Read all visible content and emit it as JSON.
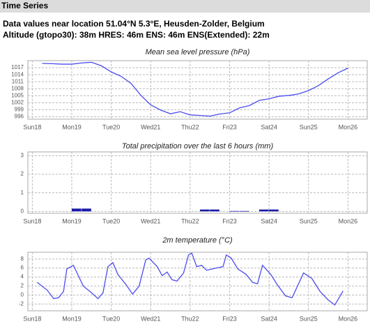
{
  "header": {
    "title": "Time Series",
    "location": "Data values near location 51.04°N 5.3°E, Heusden-Zolder, Belgium",
    "altitude": "Altitude (gtopo30): 38m HRES: 46m ENS: 46m ENS(Extended): 22m"
  },
  "chart_data": [
    {
      "type": "line",
      "title": "Mean sea level pressure (hPa)",
      "color": "#4b4bef",
      "grid": true,
      "xlim": [
        9.3,
        215.7
      ],
      "ylim": [
        995,
        1020
      ],
      "xticks": [
        {
          "value": 12,
          "label": "Sun18",
          "color": "#e8322d"
        },
        {
          "value": 36,
          "label": "Mon19",
          "color": "#555555"
        },
        {
          "value": 60,
          "label": "Tue20",
          "color": "#555555"
        },
        {
          "value": 84,
          "label": "Wed21",
          "color": "#555555"
        },
        {
          "value": 108,
          "label": "Thu22",
          "color": "#555555"
        },
        {
          "value": 132,
          "label": "Fri23",
          "color": "#555555"
        },
        {
          "value": 156,
          "label": "Sat24",
          "color": "#555555"
        },
        {
          "value": 180,
          "label": "Sun25",
          "color": "#e8322d"
        },
        {
          "value": 204,
          "label": "Mon26",
          "color": "#555555"
        }
      ],
      "yticks": [
        996,
        999,
        1002,
        1005,
        1008,
        1011,
        1014,
        1017
      ],
      "x": [
        18,
        24,
        30,
        36,
        42,
        48,
        54,
        60,
        66,
        72,
        78,
        84,
        90,
        96,
        102,
        108,
        114,
        120,
        126,
        132,
        138,
        144,
        150,
        156,
        162,
        168,
        174,
        180,
        186,
        192,
        198,
        204
      ],
      "values": [
        1018.8,
        1018.7,
        1018.5,
        1018.5,
        1019,
        1019.3,
        1017.8,
        1015.2,
        1013.3,
        1010.3,
        1005.2,
        1001.1,
        998.9,
        997.3,
        998.2,
        996.8,
        996.6,
        996.3,
        997.2,
        997.7,
        999.8,
        1000.8,
        1003,
        1003.7,
        1004.8,
        1005.1,
        1005.8,
        1007.2,
        1009.3,
        1012.2,
        1014.8,
        1016.8
      ]
    },
    {
      "type": "bar",
      "title": "Total precipitation over the last 6 hours (mm)",
      "color": "#1a1aa8",
      "grid": true,
      "bar_width": 6,
      "xlim": [
        9.3,
        215.7
      ],
      "ylim": [
        -0.1,
        3.2
      ],
      "xticks": [
        {
          "value": 12,
          "label": "Sun18",
          "color": "#e8322d"
        },
        {
          "value": 36,
          "label": "Mon19",
          "color": "#555555"
        },
        {
          "value": 60,
          "label": "Tue20",
          "color": "#555555"
        },
        {
          "value": 84,
          "label": "Wed21",
          "color": "#555555"
        },
        {
          "value": 108,
          "label": "Thu22",
          "color": "#555555"
        },
        {
          "value": 132,
          "label": "Fri23",
          "color": "#555555"
        },
        {
          "value": 156,
          "label": "Sat24",
          "color": "#555555"
        },
        {
          "value": 180,
          "label": "Sun25",
          "color": "#e8322d"
        },
        {
          "value": 204,
          "label": "Mon26",
          "color": "#555555"
        }
      ],
      "yticks": [
        0,
        1,
        2,
        3
      ],
      "x": [
        36,
        42,
        114,
        120,
        132,
        138,
        150,
        156
      ],
      "values": [
        0.15,
        0.15,
        0.1,
        0.1,
        0.02,
        0.02,
        0.1,
        0.1
      ]
    },
    {
      "type": "line",
      "title": "2m temperature (°C)",
      "color": "#4b4bef",
      "grid": true,
      "xlim": [
        9.3,
        215.7
      ],
      "ylim": [
        -3.5,
        9.5
      ],
      "xticks": [
        {
          "value": 12,
          "label": "Sun18",
          "color": "#e8322d"
        },
        {
          "value": 36,
          "label": "Mon19",
          "color": "#555555"
        },
        {
          "value": 60,
          "label": "Tue20",
          "color": "#555555"
        },
        {
          "value": 84,
          "label": "Wed21",
          "color": "#555555"
        },
        {
          "value": 108,
          "label": "Thu22",
          "color": "#555555"
        },
        {
          "value": 132,
          "label": "Fri23",
          "color": "#555555"
        },
        {
          "value": 156,
          "label": "Sat24",
          "color": "#555555"
        },
        {
          "value": 180,
          "label": "Sun25",
          "color": "#e8322d"
        },
        {
          "value": 204,
          "label": "Mon26",
          "color": "#555555"
        }
      ],
      "yticks": [
        -2,
        0,
        2,
        4,
        6,
        8
      ],
      "x": [
        15,
        21,
        25,
        28,
        31,
        33,
        37,
        40,
        43,
        48,
        52,
        55,
        58,
        61,
        64,
        69,
        73,
        77,
        81,
        83,
        88,
        91,
        94,
        97,
        100,
        104,
        107,
        109,
        112,
        115,
        118,
        124,
        128,
        130,
        133,
        137,
        142,
        146,
        149,
        152,
        157,
        161,
        166,
        170,
        177,
        182,
        187,
        192,
        196,
        201
      ],
      "values": [
        2.8,
        1.1,
        -0.8,
        -0.6,
        0.8,
        5.8,
        6.6,
        4.3,
        2.0,
        0.5,
        -0.8,
        0.5,
        6.3,
        7.2,
        4.6,
        2.3,
        0.2,
        2.0,
        7.8,
        8.2,
        6.3,
        4.3,
        5.1,
        3.4,
        3.1,
        4.9,
        8.9,
        9.3,
        6.3,
        6.6,
        5.5,
        6.0,
        6.3,
        8.9,
        8.2,
        5.8,
        4.6,
        2.8,
        2.5,
        6.6,
        4.6,
        2.3,
        -0.2,
        -0.6,
        4.9,
        3.7,
        0.8,
        -1.1,
        -2.2,
        0.9
      ]
    }
  ]
}
